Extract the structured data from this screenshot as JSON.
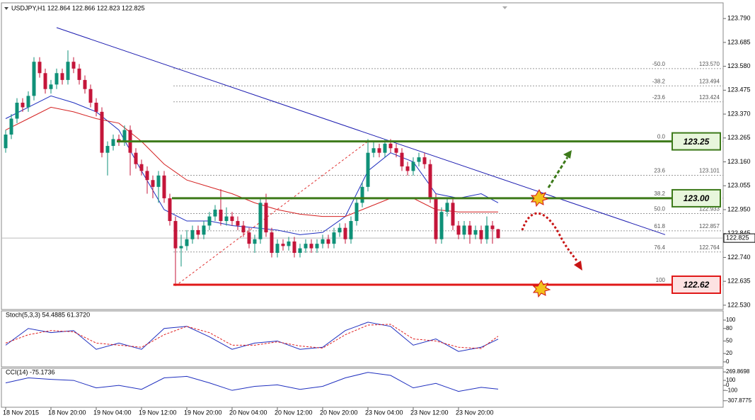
{
  "chart_data": {
    "type": "candlestick",
    "title": "USDJPY,H1  122.864 122.866 122.823 122.825",
    "open": [
      123.22,
      123.28,
      123.35,
      123.42,
      123.4,
      123.45,
      123.6,
      123.55,
      123.48,
      123.5,
      123.55,
      123.52,
      123.6,
      123.57,
      123.52,
      123.48,
      123.42,
      123.38,
      123.2,
      123.23,
      123.26,
      123.25,
      123.3,
      123.2,
      123.15,
      123.12,
      123.08,
      123.05,
      123.1,
      123.0,
      122.9,
      122.78,
      122.79,
      122.82,
      122.86,
      122.84,
      122.88,
      122.92,
      122.95,
      122.9,
      122.92,
      122.9,
      122.88,
      122.85,
      122.8,
      122.82,
      122.98,
      122.85,
      122.76,
      122.8,
      122.79,
      122.81,
      122.76,
      122.78,
      122.8,
      122.78,
      122.8,
      122.82,
      122.8,
      122.85,
      122.87,
      122.82,
      122.9,
      122.98,
      123.05,
      123.2,
      123.22,
      123.2,
      123.24,
      123.22,
      123.2,
      123.14,
      123.12,
      123.16,
      123.18,
      123.15,
      123.0,
      122.82,
      122.94,
      122.98,
      122.88,
      122.84,
      122.88,
      122.84,
      122.86,
      122.82,
      122.88,
      122.864
    ],
    "high": [
      123.3,
      123.37,
      123.44,
      123.44,
      123.47,
      123.62,
      123.62,
      123.57,
      123.52,
      123.57,
      123.57,
      123.65,
      123.62,
      123.59,
      123.54,
      123.5,
      123.44,
      123.4,
      123.25,
      123.28,
      123.28,
      123.32,
      123.32,
      123.22,
      123.17,
      123.14,
      123.1,
      123.12,
      123.12,
      123.02,
      122.92,
      122.84,
      122.86,
      122.88,
      122.88,
      122.9,
      122.94,
      122.97,
      123.04,
      122.96,
      122.94,
      122.92,
      122.9,
      122.87,
      122.84,
      123.0,
      123.02,
      122.87,
      122.82,
      122.82,
      122.83,
      122.83,
      122.8,
      122.82,
      122.82,
      122.82,
      122.84,
      122.84,
      122.87,
      122.89,
      122.89,
      122.92,
      123.0,
      123.07,
      123.26,
      123.25,
      123.24,
      123.26,
      123.26,
      123.24,
      123.22,
      123.16,
      123.18,
      123.2,
      123.2,
      123.17,
      123.02,
      122.96,
      123.0,
      123.0,
      122.9,
      122.9,
      122.9,
      122.88,
      122.88,
      122.92,
      122.9,
      122.866
    ],
    "low": [
      123.2,
      123.26,
      123.33,
      123.38,
      123.38,
      123.43,
      123.53,
      123.46,
      123.46,
      123.48,
      123.5,
      123.5,
      123.55,
      123.5,
      123.46,
      123.4,
      123.36,
      123.18,
      123.1,
      123.21,
      123.23,
      123.23,
      123.1,
      123.13,
      123.1,
      123.02,
      123.0,
      122.98,
      122.98,
      122.88,
      122.62,
      122.7,
      122.77,
      122.8,
      122.82,
      122.82,
      122.86,
      122.9,
      122.88,
      122.88,
      122.88,
      122.86,
      122.83,
      122.78,
      122.76,
      122.8,
      122.83,
      122.74,
      122.74,
      122.77,
      122.77,
      122.74,
      122.74,
      122.76,
      122.76,
      122.76,
      122.78,
      122.78,
      122.78,
      122.83,
      122.8,
      122.8,
      122.88,
      122.96,
      123.03,
      123.18,
      123.18,
      123.18,
      123.2,
      123.18,
      123.12,
      123.1,
      123.1,
      123.14,
      123.13,
      122.98,
      122.8,
      122.8,
      122.92,
      122.86,
      122.82,
      122.82,
      122.8,
      122.82,
      122.8,
      122.8,
      122.8,
      122.823
    ],
    "close": [
      123.28,
      123.35,
      123.42,
      123.4,
      123.45,
      123.6,
      123.55,
      123.48,
      123.5,
      123.55,
      123.52,
      123.6,
      123.57,
      123.52,
      123.48,
      123.42,
      123.38,
      123.2,
      123.23,
      123.26,
      123.25,
      123.3,
      123.2,
      123.15,
      123.12,
      123.08,
      123.05,
      123.1,
      123.0,
      122.9,
      122.78,
      122.79,
      122.82,
      122.86,
      122.84,
      122.88,
      122.92,
      122.95,
      122.9,
      122.92,
      122.9,
      122.88,
      122.85,
      122.8,
      122.82,
      122.98,
      122.85,
      122.76,
      122.8,
      122.79,
      122.81,
      122.76,
      122.78,
      122.8,
      122.78,
      122.8,
      122.82,
      122.8,
      122.85,
      122.87,
      122.82,
      122.9,
      122.98,
      123.05,
      123.2,
      123.22,
      123.2,
      123.24,
      123.22,
      123.2,
      123.14,
      123.12,
      123.16,
      123.18,
      123.15,
      123.0,
      122.82,
      122.94,
      122.98,
      122.88,
      122.84,
      122.88,
      122.84,
      122.86,
      122.82,
      122.88,
      122.864,
      122.825
    ],
    "up_color": "#0f9178",
    "down_color": "#c4163a",
    "xlim": [
      -0.75,
      126.75
    ],
    "xticks": [
      {
        "value": 0,
        "label": "18 Nov 2015"
      },
      {
        "value": 8,
        "label": "18 Nov 20:00"
      },
      {
        "value": 16,
        "label": "19 Nov 04:00"
      },
      {
        "value": 24,
        "label": "19 Nov 12:00"
      },
      {
        "value": 32,
        "label": "19 Nov 20:00"
      },
      {
        "value": 40,
        "label": "20 Nov 04:00"
      },
      {
        "value": 48,
        "label": "20 Nov 12:00"
      },
      {
        "value": 56,
        "label": "20 Nov 20:00"
      },
      {
        "value": 64,
        "label": "23 Nov 04:00"
      },
      {
        "value": 72,
        "label": "23 Nov 12:00"
      },
      {
        "value": 80,
        "label": "23 Nov 20:00"
      }
    ],
    "ylim": [
      122.511,
      123.859
    ],
    "yticks": [
      {
        "value": 123.79,
        "label": "123.790"
      },
      {
        "value": 123.685,
        "label": "123.685"
      },
      {
        "value": 123.58,
        "label": "123.580"
      },
      {
        "value": 123.475,
        "label": "123.475"
      },
      {
        "value": 123.37,
        "label": "123.370"
      },
      {
        "value": 123.265,
        "label": "123.265"
      },
      {
        "value": 123.16,
        "label": "123.160"
      },
      {
        "value": 123.055,
        "label": "123.055"
      },
      {
        "value": 122.95,
        "label": "122.950"
      },
      {
        "value": 122.845,
        "label": "122.845"
      },
      {
        "value": 122.74,
        "label": "122.740"
      },
      {
        "value": 122.635,
        "label": "122.635"
      },
      {
        "value": 122.53,
        "label": "122.530"
      }
    ],
    "last_price": {
      "value": 122.825,
      "label": "122.825"
    },
    "sample_x": [
      0,
      4,
      8,
      12,
      16,
      20,
      24,
      28,
      32,
      36,
      40,
      44,
      48,
      52,
      56,
      60,
      64,
      68,
      72,
      76,
      80,
      84,
      87
    ],
    "moving_averages": [
      {
        "color": "#1f2fbf",
        "values": [
          123.35,
          123.4,
          123.45,
          123.42,
          123.38,
          123.3,
          123.12,
          122.95,
          122.9,
          122.9,
          122.88,
          122.87,
          122.86,
          122.84,
          122.85,
          122.92,
          123.12,
          123.2,
          123.16,
          123.02,
          123.0,
          123.02,
          122.98
        ]
      },
      {
        "color": "#d42020",
        "values": [
          123.3,
          123.35,
          123.4,
          123.38,
          123.35,
          123.33,
          123.25,
          123.15,
          123.08,
          123.05,
          123.02,
          122.98,
          122.95,
          122.93,
          122.92,
          122.92,
          122.96,
          123.0,
          123.0,
          122.95,
          122.94,
          122.94,
          122.94
        ]
      }
    ],
    "trendline": {
      "color": "#1b1bb0",
      "x": [
        9,
        116.5
      ],
      "values": [
        123.75,
        122.84
      ]
    },
    "fib_line": {
      "color": "#e03030",
      "x": [
        30,
        64
      ],
      "values": [
        122.615,
        123.25
      ]
    },
    "fibonacci": {
      "levels": [
        "-50.0",
        "-38.2",
        "-23.6",
        "0.0",
        "23.6",
        "38.2",
        "50.0",
        "61.8",
        "76.4",
        "100"
      ],
      "prices": [
        123.57,
        123.494,
        123.424,
        123.25,
        123.101,
        123.0,
        122.933,
        122.857,
        122.764,
        122.62
      ],
      "price_labels": [
        "123.570",
        "123.494",
        "123.424",
        null,
        "123.101",
        null,
        "122.933",
        "122.857",
        "122.764",
        null
      ]
    },
    "levels": {
      "values": [
        123.25,
        123.0,
        122.62
      ],
      "value_labels": [
        "123.25",
        "123.00",
        "122.62"
      ],
      "colors": [
        "#3d7a1a",
        "#3d7a1a",
        "#e01818"
      ],
      "fills": [
        "#e8f6dc",
        "#e8f6dc",
        "#fde2e2"
      ]
    },
    "panels": [
      {
        "type": "line",
        "title": "Stoch(5,3,3) 54.4885 61.3720",
        "ylim": [
          -12,
          122
        ],
        "yticks": [
          100,
          80,
          50,
          20,
          0
        ],
        "series": [
          {
            "color": "#1f2fbf",
            "values": [
              40,
              80,
              70,
              75,
              30,
              45,
              30,
              80,
              85,
              60,
              30,
              45,
              50,
              30,
              35,
              75,
              95,
              85,
              40,
              55,
              25,
              35,
              54.4885
            ]
          },
          {
            "color": "#e02020",
            "dashed": true,
            "values": [
              45,
              65,
              75,
              72,
              45,
              40,
              35,
              65,
              85,
              70,
              40,
              40,
              48,
              38,
              33,
              65,
              88,
              90,
              55,
              50,
              35,
              32,
              61.372
            ]
          }
        ]
      },
      {
        "type": "line",
        "title": "CCI(14) -75.1736",
        "ylim": [
          -438,
          342
        ],
        "yticks": [
          269.8698,
          100,
          0,
          -100,
          -307.8775
        ],
        "series": [
          {
            "color": "#1f2fbf",
            "values": [
              50,
              150,
              120,
              100,
              -50,
              0,
              -80,
              150,
              180,
              50,
              -100,
              -20,
              10,
              -80,
              -20,
              150,
              260,
              200,
              -50,
              40,
              -120,
              -40,
              -75.1736
            ]
          }
        ]
      }
    ]
  }
}
